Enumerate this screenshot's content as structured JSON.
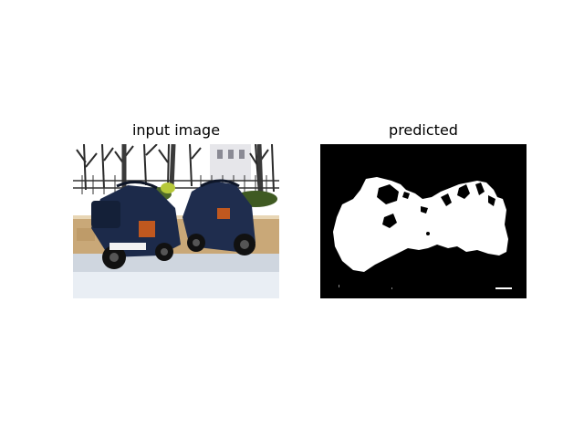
{
  "panels": {
    "input": {
      "title": "input image",
      "description_icon": "photo-of-two-covered-scooters"
    },
    "predicted": {
      "title": "predicted",
      "description_icon": "binary-segmentation-mask"
    }
  },
  "colors": {
    "background": "#ffffff",
    "mask_background": "#000000",
    "mask_foreground": "#ffffff",
    "scooter_body": "#1c2a4a",
    "scooter_accent": "#c0581f",
    "wall": "#c9a878",
    "sky": "#ffffff"
  }
}
